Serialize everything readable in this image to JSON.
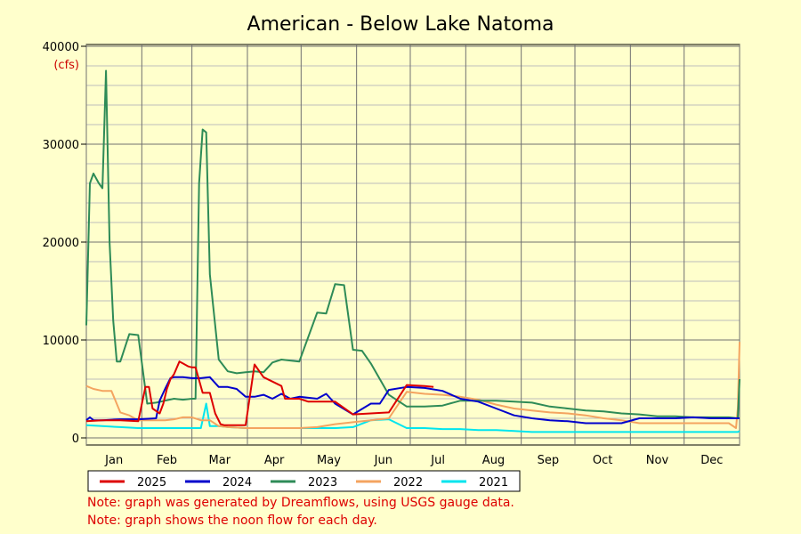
{
  "chart_data": {
    "type": "line",
    "title": "American - Below Lake Natoma",
    "ylabel": "(cfs)",
    "ylim": [
      0,
      40000
    ],
    "yticks": [
      0,
      10000,
      20000,
      30000,
      40000
    ],
    "xlim": [
      1,
      366
    ],
    "grid": true,
    "legend_position": "bottom",
    "months": [
      "Jan",
      "Feb",
      "Mar",
      "Apr",
      "May",
      "Jun",
      "Jul",
      "Aug",
      "Sep",
      "Oct",
      "Nov",
      "Dec"
    ],
    "series": [
      {
        "name": "2025",
        "color": "#dd0000",
        "x": [
          1,
          10,
          20,
          30,
          34,
          36,
          38,
          42,
          44,
          46,
          48,
          50,
          53,
          55,
          58,
          60,
          62,
          66,
          70,
          73,
          76,
          78,
          85,
          90,
          95,
          100,
          110,
          112,
          120,
          125,
          130,
          140,
          150,
          160,
          170,
          180,
          190,
          195
        ],
        "y": [
          1700,
          1800,
          1800,
          1700,
          5200,
          5200,
          3000,
          2500,
          3500,
          5000,
          6000,
          6500,
          7800,
          7600,
          7300,
          7200,
          7200,
          4600,
          4600,
          2500,
          1400,
          1300,
          1300,
          1300,
          7500,
          6200,
          5300,
          4000,
          4000,
          3700,
          3700,
          3700,
          2400,
          2500,
          2600,
          5400,
          5300,
          5200
        ]
      },
      {
        "name": "2024",
        "color": "#0000cc",
        "x": [
          1,
          3,
          5,
          10,
          20,
          30,
          40,
          42,
          45,
          48,
          50,
          55,
          60,
          65,
          70,
          75,
          80,
          85,
          90,
          95,
          100,
          105,
          110,
          115,
          120,
          125,
          130,
          135,
          140,
          150,
          160,
          165,
          170,
          180,
          190,
          200,
          210,
          220,
          230,
          240,
          250,
          260,
          270,
          280,
          290,
          300,
          310,
          320,
          330,
          340,
          350,
          360,
          366
        ],
        "y": [
          1800,
          2100,
          1800,
          1800,
          1900,
          1900,
          2000,
          3800,
          5000,
          6100,
          6200,
          6200,
          6100,
          6100,
          6200,
          5200,
          5200,
          5000,
          4200,
          4200,
          4400,
          4000,
          4500,
          4000,
          4200,
          4100,
          4000,
          4500,
          3500,
          2400,
          3500,
          3500,
          4900,
          5200,
          5100,
          4800,
          4000,
          3700,
          3000,
          2300,
          2000,
          1800,
          1700,
          1500,
          1500,
          1500,
          2000,
          2000,
          2000,
          2100,
          2000,
          2000,
          2000
        ]
      },
      {
        "name": "2023",
        "color": "#2e8b57",
        "x": [
          1,
          3,
          5,
          8,
          10,
          12,
          14,
          16,
          18,
          20,
          25,
          30,
          35,
          40,
          45,
          50,
          55,
          60,
          62,
          64,
          66,
          68,
          70,
          75,
          80,
          85,
          90,
          95,
          100,
          105,
          110,
          120,
          130,
          135,
          140,
          145,
          150,
          155,
          160,
          170,
          180,
          190,
          200,
          210,
          220,
          230,
          240,
          250,
          260,
          270,
          280,
          290,
          300,
          310,
          320,
          330,
          340,
          350,
          360,
          365,
          366
        ],
        "y": [
          11500,
          26000,
          27000,
          26000,
          25500,
          37500,
          20000,
          12000,
          7800,
          7800,
          10600,
          10500,
          3500,
          3600,
          3800,
          4000,
          3900,
          4000,
          4000,
          26000,
          31500,
          31200,
          16700,
          8000,
          6800,
          6600,
          6700,
          6800,
          6700,
          7700,
          8000,
          7800,
          12800,
          12700,
          15700,
          15600,
          9000,
          8900,
          7600,
          4400,
          3200,
          3200,
          3300,
          3800,
          3800,
          3800,
          3700,
          3600,
          3200,
          3000,
          2800,
          2700,
          2500,
          2400,
          2200,
          2200,
          2100,
          2100,
          2100,
          2000,
          6000
        ]
      },
      {
        "name": "2022",
        "color": "#f4a460",
        "x": [
          1,
          5,
          10,
          15,
          20,
          25,
          30,
          35,
          40,
          45,
          50,
          55,
          60,
          65,
          70,
          75,
          80,
          90,
          100,
          110,
          120,
          130,
          140,
          150,
          160,
          170,
          180,
          190,
          200,
          210,
          220,
          230,
          240,
          250,
          260,
          270,
          280,
          290,
          300,
          310,
          320,
          330,
          340,
          350,
          360,
          364,
          365,
          366
        ],
        "y": [
          5300,
          5000,
          4800,
          4800,
          2600,
          2300,
          1800,
          1800,
          1800,
          1800,
          1900,
          2100,
          2100,
          1800,
          1800,
          1200,
          1100,
          1000,
          1000,
          1000,
          1000,
          1100,
          1400,
          1600,
          1800,
          2000,
          4700,
          4500,
          4400,
          4200,
          3900,
          3400,
          3000,
          2800,
          2600,
          2500,
          2300,
          2000,
          1800,
          1500,
          1500,
          1500,
          1500,
          1500,
          1500,
          1000,
          3000,
          9800
        ]
      },
      {
        "name": "2021",
        "color": "#00e5ee",
        "x": [
          1,
          10,
          20,
          30,
          40,
          50,
          60,
          65,
          68,
          70,
          75,
          80,
          90,
          100,
          110,
          120,
          130,
          140,
          150,
          160,
          170,
          180,
          190,
          200,
          210,
          220,
          230,
          240,
          250,
          260,
          270,
          280,
          290,
          300,
          310,
          320,
          330,
          340,
          350,
          360,
          365,
          366
        ],
        "y": [
          1300,
          1200,
          1100,
          1000,
          1000,
          1000,
          1000,
          1000,
          3500,
          1200,
          1200,
          1100,
          1000,
          1000,
          1000,
          1000,
          1000,
          1000,
          1100,
          1800,
          1900,
          1000,
          1000,
          900,
          900,
          800,
          800,
          700,
          600,
          600,
          600,
          600,
          600,
          600,
          600,
          600,
          600,
          600,
          600,
          600,
          600,
          700
        ]
      }
    ]
  },
  "notes": [
    "Note: graph was generated by Dreamflows, using USGS gauge data.",
    "Note: graph shows the noon flow for each day."
  ]
}
